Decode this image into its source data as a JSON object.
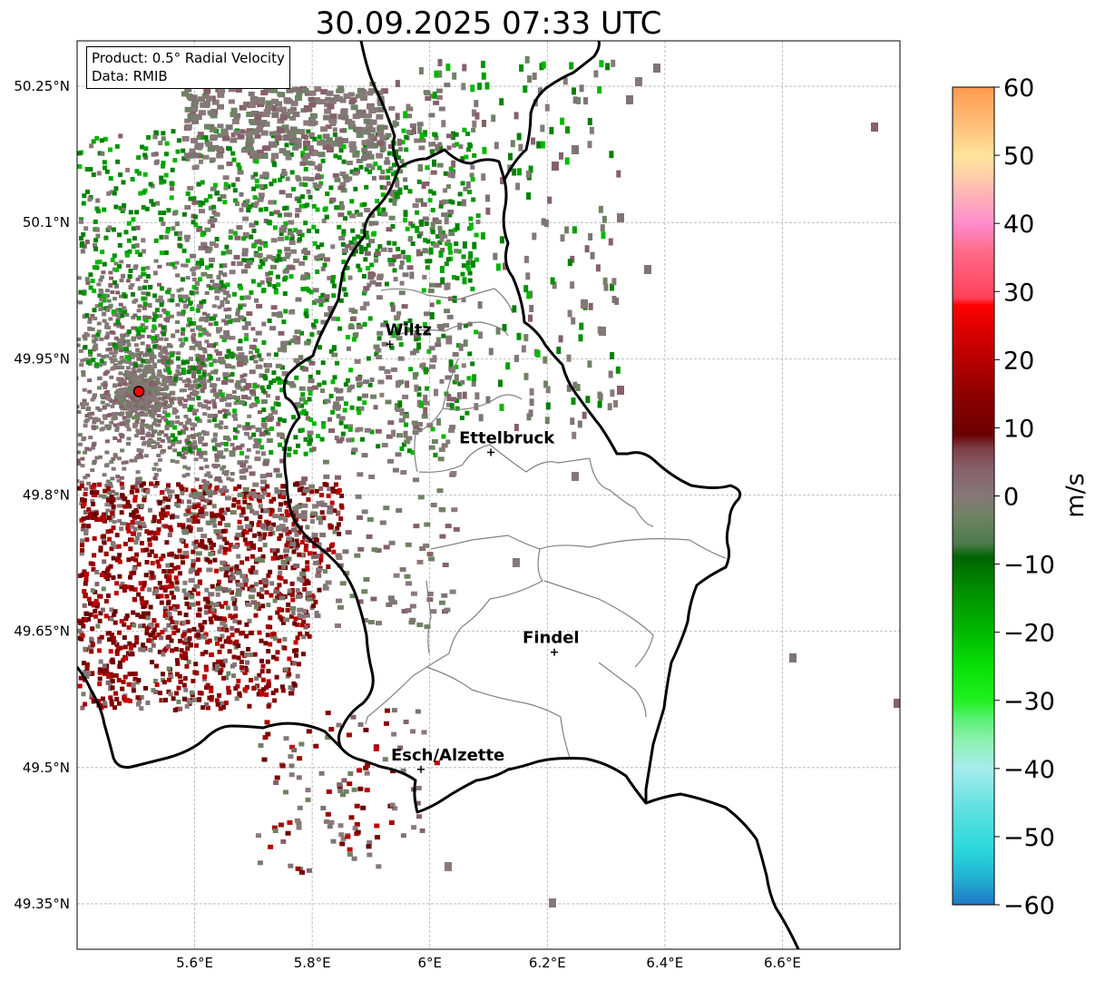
{
  "title": "30.09.2025 07:33 UTC",
  "info_box": {
    "product": "Product: 0.5° Radial Velocity",
    "data_source": "Data: RMIB"
  },
  "axes": {
    "x_ticks": [
      {
        "value": 5.6,
        "label": "5.6°E"
      },
      {
        "value": 5.8,
        "label": "5.8°E"
      },
      {
        "value": 6.0,
        "label": "6°E"
      },
      {
        "value": 6.2,
        "label": "6.2°E"
      },
      {
        "value": 6.4,
        "label": "6.4°E"
      },
      {
        "value": 6.6,
        "label": "6.6°E"
      }
    ],
    "y_ticks": [
      {
        "value": 50.25,
        "label": "50.25°N"
      },
      {
        "value": 50.1,
        "label": "50.1°N"
      },
      {
        "value": 49.95,
        "label": "49.95°N"
      },
      {
        "value": 49.8,
        "label": "49.8°N"
      },
      {
        "value": 49.65,
        "label": "49.65°N"
      },
      {
        "value": 49.5,
        "label": "49.5°N"
      },
      {
        "value": 49.35,
        "label": "49.35°N"
      }
    ],
    "lon_range": [
      5.4,
      6.8
    ],
    "lat_range": [
      49.3,
      50.3
    ]
  },
  "radar_site": {
    "lon": 5.505,
    "lat": 49.914,
    "color": "#ff0000"
  },
  "cities": [
    {
      "name": "Wiltz",
      "lon": 5.932,
      "lat": 49.966
    },
    {
      "name": "Ettelbruck",
      "lon": 6.104,
      "lat": 49.847
    },
    {
      "name": "Findel",
      "lon": 6.212,
      "lat": 49.627
    },
    {
      "name": "Esch/Alzette",
      "lon": 5.985,
      "lat": 49.498
    }
  ],
  "colorbar": {
    "min": -60,
    "max": 60,
    "unit": "m/s",
    "ticks": [
      {
        "value": 60,
        "label": "60"
      },
      {
        "value": 50,
        "label": "50"
      },
      {
        "value": 40,
        "label": "40"
      },
      {
        "value": 30,
        "label": "30"
      },
      {
        "value": 20,
        "label": "20"
      },
      {
        "value": 10,
        "label": "10"
      },
      {
        "value": 0,
        "label": "0"
      },
      {
        "value": -10,
        "label": "−10"
      },
      {
        "value": -20,
        "label": "−20"
      },
      {
        "value": -30,
        "label": "−30"
      },
      {
        "value": -40,
        "label": "−40"
      },
      {
        "value": -50,
        "label": "−50"
      },
      {
        "value": -60,
        "label": "−60"
      }
    ],
    "stops": [
      {
        "value": -60,
        "color": "#1f78c4"
      },
      {
        "value": -56,
        "color": "#22b2d2"
      },
      {
        "value": -52,
        "color": "#2ad8dc"
      },
      {
        "value": -46,
        "color": "#5ee0e0"
      },
      {
        "value": -40,
        "color": "#a6ecec"
      },
      {
        "value": -36,
        "color": "#8ef0b0"
      },
      {
        "value": -33,
        "color": "#5ef07a"
      },
      {
        "value": -30,
        "color": "#20f020"
      },
      {
        "value": -25,
        "color": "#08e008"
      },
      {
        "value": -20,
        "color": "#00b800"
      },
      {
        "value": -14,
        "color": "#009000"
      },
      {
        "value": -9,
        "color": "#006400"
      },
      {
        "value": -7,
        "color": "#4e7a4e"
      },
      {
        "value": -3,
        "color": "#6e8264"
      },
      {
        "value": 0,
        "color": "#857878"
      },
      {
        "value": 4,
        "color": "#86606a"
      },
      {
        "value": 7,
        "color": "#7c4048"
      },
      {
        "value": 9,
        "color": "#6a0000"
      },
      {
        "value": 15,
        "color": "#900000"
      },
      {
        "value": 20,
        "color": "#b80000"
      },
      {
        "value": 25,
        "color": "#e00000"
      },
      {
        "value": 28,
        "color": "#ff0000"
      },
      {
        "value": 29,
        "color": "#ff4058"
      },
      {
        "value": 36,
        "color": "#ff6c8c"
      },
      {
        "value": 40,
        "color": "#ff8ccc"
      },
      {
        "value": 44,
        "color": "#ffb0b8"
      },
      {
        "value": 47,
        "color": "#ffd0a8"
      },
      {
        "value": 50,
        "color": "#ffe49c"
      },
      {
        "value": 54,
        "color": "#ffc27c"
      },
      {
        "value": 60,
        "color": "#ff9a4e"
      }
    ]
  },
  "colors": {
    "border": "#000000",
    "canton": "#808080",
    "grid": "#b0b0b0",
    "inbound_green": "#009000",
    "outbound_red": "#8b0000",
    "near_zero": "#857878"
  }
}
